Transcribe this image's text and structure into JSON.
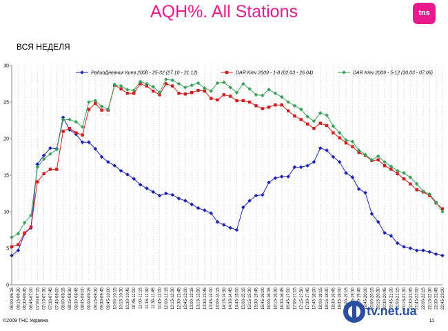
{
  "header": {
    "title": "AQH%. All Stations",
    "subtitle": "ВСЯ НЕДЕЛЯ",
    "logo_text": "tns"
  },
  "footer": {
    "copyright": "©2009 ТНС Украина",
    "page_number": "11",
    "watermark": "tv.net.ua"
  },
  "colors": {
    "title": "#e8198b",
    "series_blue": "#1a22b5",
    "series_red": "#d41c1c",
    "series_green": "#3aa05a"
  },
  "chart_data": {
    "type": "line",
    "title": "",
    "xlabel": "",
    "ylabel": "",
    "ylim": [
      0,
      30
    ],
    "yticks": [
      0,
      5,
      10,
      15,
      20,
      25,
      30
    ],
    "ytick_labels": [
      "0",
      "5",
      "10",
      "15",
      "20",
      "25",
      "30"
    ],
    "grid": "vertical dotted",
    "legend_position": "top",
    "categories": [
      "06:00-06:15",
      "06:15-06:30",
      "06:30-06:45",
      "06:45-07:00",
      "07:00-07:15",
      "07:15-07:30",
      "07:30-07:45",
      "07:45-08:00",
      "08:00-08:15",
      "08:15-08:30",
      "08:30-08:45",
      "08:45-09:00",
      "09:00-09:15",
      "09:15-09:30",
      "09:30-09:45",
      "09:45-10:00",
      "10:00-10:15",
      "10:15-10:30",
      "10:30-10:45",
      "10:45-11:00",
      "11:00-11:15",
      "11:15-11:30",
      "11:30-11:45",
      "11:45-12:00",
      "12:00-12:15",
      "12:15-12:30",
      "12:30-12:45",
      "12:45-13:00",
      "13:00-13:15",
      "13:15-13:30",
      "13:30-13:45",
      "13:45-14:00",
      "14:00-14:15",
      "14:15-14:30",
      "14:30-14:45",
      "14:45-15:00",
      "15:00-15:15",
      "15:15-15:30",
      "15:30-15:45",
      "15:45-16:00",
      "16:00-16:15",
      "16:15-16:30",
      "16:30-16:45",
      "16:45-17:00",
      "17:00-17:15",
      "17:15-17:30",
      "17:30-17:45",
      "17:45-18:00",
      "18:00-18:15",
      "18:15-18:30",
      "18:30-18:45",
      "18:45-19:00",
      "19:00-19:15",
      "19:15-19:30",
      "19:30-19:45",
      "19:45-20:00",
      "20:00-20:15",
      "20:15-20:30",
      "20:30-20:45",
      "20:45-21:00",
      "21:00-21:15",
      "21:15-21:30",
      "21:30-21:45",
      "21:45-22:00",
      "22:00-22:15",
      "22:15-22:30",
      "22:30-22:45",
      "22:45-23:00"
    ],
    "series": [
      {
        "name": "РадиоДневник Киев 2008 - 25-32 (27.10 - 21.12)",
        "color": "#1a22b5",
        "marker": "diamond",
        "values": [
          4.0,
          4.7,
          7.0,
          7.8,
          16.5,
          17.7,
          18.7,
          18.6,
          22.9,
          21.2,
          20.6,
          19.5,
          19.5,
          18.6,
          17.5,
          16.8,
          16.3,
          15.6,
          15.1,
          14.5,
          13.7,
          13.2,
          12.7,
          12.2,
          12.5,
          12.3,
          11.8,
          11.5,
          11.0,
          10.5,
          10.2,
          9.8,
          8.6,
          8.2,
          7.8,
          7.5,
          10.6,
          11.5,
          12.2,
          12.3,
          14.0,
          14.6,
          14.8,
          14.8,
          16.1,
          16.1,
          16.3,
          16.8,
          18.7,
          18.4,
          17.5,
          16.8,
          15.3,
          14.7,
          13.1,
          12.6,
          9.7,
          8.6,
          7.1,
          6.7,
          5.7,
          5.2,
          5.0,
          4.7,
          4.7,
          4.5,
          4.2,
          4.0
        ]
      },
      {
        "name": "DAR Kiev 2009 - 1-8 (02.03 - 26.04)",
        "color": "#d41c1c",
        "marker": "square",
        "values": [
          5.2,
          5.5,
          7.1,
          7.9,
          14.1,
          15.2,
          15.8,
          15.8,
          21.0,
          21.4,
          20.8,
          20.5,
          24.0,
          24.8,
          23.9,
          23.9,
          27.3,
          26.8,
          26.2,
          26.2,
          27.5,
          27.2,
          26.5,
          26.0,
          27.5,
          27.2,
          26.2,
          26.1,
          26.3,
          26.6,
          26.5,
          25.5,
          25.3,
          26.0,
          25.8,
          25.2,
          25.2,
          25.0,
          24.5,
          24.1,
          24.3,
          24.6,
          24.6,
          23.8,
          23.1,
          22.6,
          22.0,
          21.4,
          22.1,
          21.8,
          20.8,
          20.1,
          19.4,
          18.9,
          18.1,
          17.7,
          17.0,
          17.1,
          16.3,
          15.8,
          15.2,
          14.5,
          13.8,
          13.0,
          12.7,
          12.2,
          11.2,
          10.4
        ]
      },
      {
        "name": "DAR Kiev 2009 - 5-12 (30.03 - 07.06)",
        "color": "#3aa05a",
        "marker": "diamond",
        "values": [
          6.5,
          7.0,
          8.5,
          9.5,
          16.1,
          17.2,
          17.9,
          18.5,
          22.6,
          22.6,
          22.3,
          21.6,
          25.0,
          25.2,
          24.4,
          24.0,
          27.4,
          27.2,
          26.7,
          26.6,
          27.8,
          27.5,
          27.1,
          26.3,
          28.1,
          28.0,
          27.5,
          27.0,
          27.3,
          27.6,
          26.9,
          26.5,
          27.6,
          27.7,
          27.0,
          26.3,
          27.5,
          26.8,
          26.0,
          25.9,
          26.7,
          26.2,
          25.7,
          25.0,
          24.5,
          24.0,
          23.0,
          22.4,
          23.5,
          23.2,
          21.7,
          20.8,
          19.8,
          19.6,
          18.4,
          17.8,
          17.1,
          17.6,
          16.8,
          16.2,
          15.6,
          15.3,
          14.7,
          13.8,
          12.8,
          12.4,
          11.3,
          10.0
        ]
      }
    ]
  }
}
